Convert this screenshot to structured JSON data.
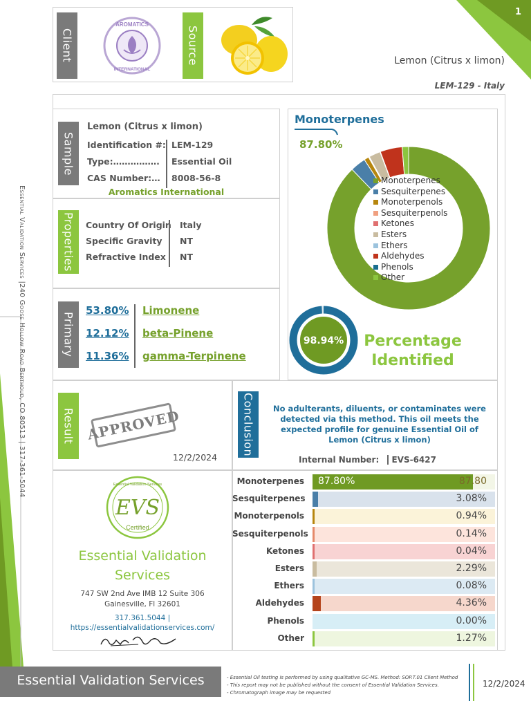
{
  "page_number": "1",
  "header": {
    "client_tab": "Client",
    "source_tab": "Source",
    "client_logo_top": "AROMATICS",
    "client_logo_bottom": "INTERNATIONAL",
    "product_name": "Lemon (Citrus x limon)",
    "lot_origin": "LEM-129 - Italy"
  },
  "sidebar_address": "Essential Validation Services |240 Goose Hollow Road Berthoud, CO 80513 | 317-361-5044",
  "sample": {
    "tab": "Sample",
    "name": "Lemon (Citrus x limon)",
    "rows": [
      {
        "label": "Identification #:",
        "value": "LEM-129"
      },
      {
        "label": "Type:…………….",
        "value": "Essential Oil"
      },
      {
        "label": "CAS Number:…",
        "value": "8008-56-8"
      }
    ],
    "supplier": "Aromatics International"
  },
  "properties": {
    "tab": "Properties",
    "rows": [
      {
        "label": "Country Of Origin",
        "value": "Italy"
      },
      {
        "label": "Specific Gravity",
        "value": "NT"
      },
      {
        "label": "Refractive Index",
        "value": "NT"
      }
    ]
  },
  "primary": {
    "tab": "Primary",
    "rows": [
      {
        "pct": "53.80%",
        "name": "Limonene"
      },
      {
        "pct": "12.12%",
        "name": "beta-Pinene"
      },
      {
        "pct": "11.36%",
        "name": "gamma-Terpinene"
      }
    ]
  },
  "donut": {
    "title": "Monoterpenes",
    "value": "87.80%"
  },
  "identified": {
    "value": "98.94%",
    "fraction": 0.9894,
    "label_line1": "Percentage",
    "label_line2": "Identified"
  },
  "result": {
    "tab": "Result",
    "stamp": "APPROVED",
    "date": "12/2/2024"
  },
  "conclusion": {
    "tab": "Conclusion",
    "text": "No adulterants, diluents, or contaminates were detected via this method. This oil meets the expected profile for genuine Essential Oil of Lemon (Citrus x limon)",
    "internal_label": "Internal Number:",
    "internal_value": "EVS-6427"
  },
  "company": {
    "logo_text": "EVS",
    "logo_arc": "Essential Validation Services",
    "logo_certified": "Certified",
    "name_line1": "Essential Validation",
    "name_line2": "Services",
    "address_line1": "747 SW 2nd Ave IMB 12 Suite 306",
    "address_line2": "Gainesville, Fl 32601",
    "phone": "317.361.5044 |",
    "website": "https://essentialvalidationservices.com/"
  },
  "footer": {
    "brand": "Essential Validation Services",
    "notes": [
      "- Essential Oil testing is performed by using qualitative GC-MS. Method: SOP.T.01 Client Method",
      "- This report may not be published without the consent of Essential Validation Services.",
      "- Chromatograph image may be requested"
    ],
    "date": "12/2/2024"
  },
  "chart_data": [
    {
      "type": "pie",
      "title": "Monoterpenes",
      "categories": [
        "Monoterpenes",
        "Sesquiterpenes",
        "Monoterpenols",
        "Sesquiterpenols",
        "Ketones",
        "Esters",
        "Ethers",
        "Aldehydes",
        "Phenols",
        "Other"
      ],
      "values": [
        87.8,
        3.08,
        0.94,
        0.14,
        0.04,
        2.29,
        0.08,
        4.36,
        0.0,
        1.27
      ],
      "colors": [
        "#76a12c",
        "#4a7fa8",
        "#b6860e",
        "#f0a080",
        "#e07070",
        "#c9bca0",
        "#9cc3dd",
        "#c0331c",
        "#1a6e90",
        "#8cc63f"
      ],
      "legend_position": "center"
    },
    {
      "type": "bar",
      "categories": [
        "Monoterpenes",
        "Sesquiterpenes",
        "Monoterpenols",
        "Sesquiterpenols",
        "Ketones",
        "Esters",
        "Ethers",
        "Aldehydes",
        "Phenols",
        "Other"
      ],
      "values": [
        87.8,
        3.08,
        0.94,
        0.14,
        0.04,
        2.29,
        0.08,
        4.36,
        0.0,
        1.27
      ],
      "labels": [
        "87.80",
        "3.08%",
        "0.94%",
        "0.14%",
        "0.04%",
        "2.29%",
        "0.08%",
        "4.36%",
        "0.00%",
        "1.27%"
      ],
      "first_bar_inner_label": "87.80%",
      "fill_colors": [
        "#6f9a23",
        "#4a7fa8",
        "#b6860e",
        "#e58a6a",
        "#e07070",
        "#c9bca0",
        "#9cc3dd",
        "#b5441c",
        "#1a6e90",
        "#8cc63f"
      ],
      "track_colors": [
        "#f3f6e7",
        "#d9e2ec",
        "#fbf3d9",
        "#fde4dc",
        "#f8d3d3",
        "#ebe6da",
        "#dceaf3",
        "#f6d7cc",
        "#d7eef6",
        "#eef6df"
      ],
      "xlim": [
        0,
        100
      ]
    }
  ]
}
